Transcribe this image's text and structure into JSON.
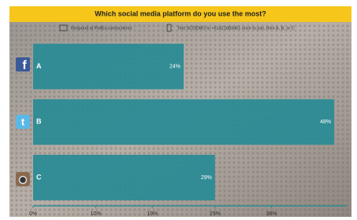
{
  "chart_data": {
    "type": "bar",
    "orientation": "horizontal",
    "title": "Which social media platform do you use the most?",
    "instructions": {
      "respond": "Respond at PollEv.com/scdemo",
      "text": "Text SCDEMO to +61421883461 once to join, then A, B, or C"
    },
    "categories": [
      "A",
      "B",
      "C"
    ],
    "values": [
      24,
      48,
      29
    ],
    "value_labels": [
      "24%",
      "48%",
      "29%"
    ],
    "color": "#2b8b95",
    "xlim": [
      0,
      50
    ],
    "xticks": [
      {
        "value": 0,
        "label": "0%"
      },
      {
        "value": 10,
        "label": "10%"
      },
      {
        "value": 19,
        "label": "19%"
      },
      {
        "value": 29,
        "label": "29%"
      },
      {
        "value": 38,
        "label": "38%"
      }
    ]
  }
}
